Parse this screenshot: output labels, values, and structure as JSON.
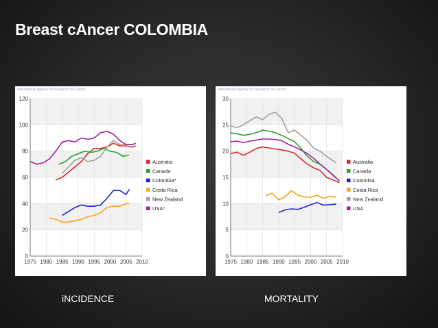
{
  "slide": {
    "title": "Breast cAncer COLOMBIA",
    "captions": {
      "incidence": "iNCIDENCE",
      "mortality": "MORTALITY"
    }
  },
  "chart_data": [
    {
      "type": "line",
      "name": "incidence",
      "source_header": "International Agency for Research on Cancer",
      "ylim": [
        0,
        120
      ],
      "yticks": [
        0,
        20,
        40,
        60,
        80,
        100,
        120
      ],
      "xlim": [
        1975,
        2010
      ],
      "xticks": [
        1975,
        1980,
        1985,
        1990,
        1995,
        2000,
        2005,
        2010
      ],
      "grid": true,
      "legend_position": "right",
      "series": [
        {
          "name": "Australia",
          "color": "#d62728",
          "x": [
            1983,
            1985,
            1987,
            1989,
            1991,
            1993,
            1995,
            1997,
            1999,
            2001,
            2003,
            2005,
            2007,
            2008
          ],
          "values": [
            58,
            60,
            64,
            68,
            72,
            78,
            82,
            82,
            83,
            86,
            84,
            84,
            83,
            84
          ]
        },
        {
          "name": "Canada",
          "color": "#2ca02c",
          "x": [
            1984,
            1986,
            1988,
            1990,
            1992,
            1994,
            1996,
            1998,
            2000,
            2002,
            2004,
            2006
          ],
          "values": [
            70,
            72,
            76,
            78,
            80,
            79,
            80,
            82,
            80,
            79,
            76,
            77
          ]
        },
        {
          "name": "Colombia*",
          "color": "#1f1fd6",
          "x": [
            1985,
            1987,
            1989,
            1991,
            1993,
            1995,
            1997,
            1999,
            2001,
            2003,
            2005,
            2006
          ],
          "values": [
            31,
            34,
            37,
            39,
            38,
            38,
            39,
            44,
            50,
            50,
            47,
            51
          ]
        },
        {
          "name": "Costa Rica",
          "color": "#ff9f1a",
          "x": [
            1981,
            1983,
            1985,
            1987,
            1989,
            1991,
            1993,
            1995,
            1997,
            1999,
            2001,
            2003,
            2005,
            2006
          ],
          "values": [
            29,
            28,
            26,
            26,
            27,
            28,
            30,
            31,
            33,
            37,
            38,
            38,
            40,
            40
          ]
        },
        {
          "name": "New Zealand",
          "color": "#a0a0a0",
          "x": [
            1985,
            1987,
            1989,
            1991,
            1993,
            1995,
            1997,
            1999,
            2001,
            2003,
            2005,
            2007,
            2008
          ],
          "values": [
            63,
            68,
            73,
            75,
            72,
            73,
            76,
            83,
            88,
            85,
            85,
            85,
            86
          ]
        },
        {
          "name": "USA*",
          "color": "#a020a0",
          "x": [
            1975,
            1977,
            1979,
            1981,
            1983,
            1985,
            1987,
            1989,
            1991,
            1993,
            1995,
            1997,
            1999,
            2001,
            2003,
            2005,
            2007,
            2008
          ],
          "values": [
            72,
            70,
            71,
            74,
            80,
            87,
            88,
            87,
            90,
            89,
            90,
            94,
            95,
            93,
            88,
            85,
            85,
            86
          ]
        }
      ]
    },
    {
      "type": "line",
      "name": "mortality",
      "source_header": "International Agency for Research on Cancer",
      "ylim": [
        0,
        30
      ],
      "yticks": [
        0,
        5,
        10,
        15,
        20,
        25,
        30
      ],
      "xlim": [
        1975,
        2010
      ],
      "xticks": [
        1975,
        1980,
        1985,
        1990,
        1995,
        2000,
        2005,
        2010
      ],
      "grid": true,
      "legend_position": "right",
      "series": [
        {
          "name": "Australia",
          "color": "#d62728",
          "x": [
            1975,
            1977,
            1979,
            1981,
            1983,
            1985,
            1987,
            1989,
            1991,
            1993,
            1995,
            1997,
            1999,
            2001,
            2003,
            2005,
            2007,
            2009
          ],
          "values": [
            19.5,
            19.8,
            19.2,
            19.8,
            20.5,
            20.8,
            20.6,
            20.4,
            20.2,
            20.0,
            19.6,
            18.5,
            17.5,
            16.8,
            16.3,
            15.0,
            14.5,
            14.0
          ]
        },
        {
          "name": "Canada",
          "color": "#2ca02c",
          "x": [
            1975,
            1977,
            1979,
            1981,
            1983,
            1985,
            1987,
            1989,
            1991,
            1993,
            1995,
            1997,
            1999,
            2001,
            2003,
            2005,
            2007,
            2009
          ],
          "values": [
            23.5,
            23.3,
            23.0,
            23.2,
            23.5,
            24.0,
            23.8,
            23.5,
            23.0,
            22.4,
            21.8,
            20.5,
            19.0,
            18.0,
            17.5,
            16.5,
            15.5,
            14.3
          ]
        },
        {
          "name": "Colombia",
          "color": "#1f1fd6",
          "x": [
            1990,
            1992,
            1994,
            1996,
            1998,
            2000,
            2002,
            2004,
            2006,
            2008
          ],
          "values": [
            8.3,
            8.8,
            9.0,
            8.9,
            9.3,
            9.8,
            10.2,
            9.7,
            9.8,
            9.9
          ]
        },
        {
          "name": "Costa Rica",
          "color": "#ff9f1a",
          "x": [
            1986,
            1988,
            1990,
            1992,
            1994,
            1996,
            1998,
            2000,
            2002,
            2004,
            2006,
            2008
          ],
          "values": [
            11.5,
            12.0,
            10.7,
            11.3,
            12.5,
            11.6,
            11.3,
            11.2,
            11.6,
            11.0,
            11.4,
            11.2
          ]
        },
        {
          "name": "New Zealand",
          "color": "#a0a0a0",
          "x": [
            1975,
            1977,
            1979,
            1981,
            1983,
            1985,
            1987,
            1989,
            1991,
            1993,
            1995,
            1997,
            1999,
            2001,
            2003,
            2005,
            2007,
            2008
          ],
          "values": [
            24.8,
            24.5,
            25.0,
            25.8,
            26.5,
            26.0,
            27.0,
            27.4,
            26.2,
            23.5,
            24.0,
            23.0,
            22.0,
            20.5,
            20.0,
            19.0,
            18.2,
            17.8
          ]
        },
        {
          "name": "USA",
          "color": "#a020a0",
          "x": [
            1975,
            1977,
            1979,
            1981,
            1983,
            1985,
            1987,
            1989,
            1991,
            1993,
            1995,
            1997,
            1999,
            2001,
            2003,
            2005,
            2007,
            2009
          ],
          "values": [
            21.8,
            21.9,
            21.6,
            21.9,
            22.1,
            22.3,
            22.3,
            22.2,
            22.0,
            21.3,
            20.8,
            20.2,
            19.5,
            18.6,
            17.5,
            16.5,
            15.4,
            14.3
          ]
        }
      ]
    }
  ]
}
